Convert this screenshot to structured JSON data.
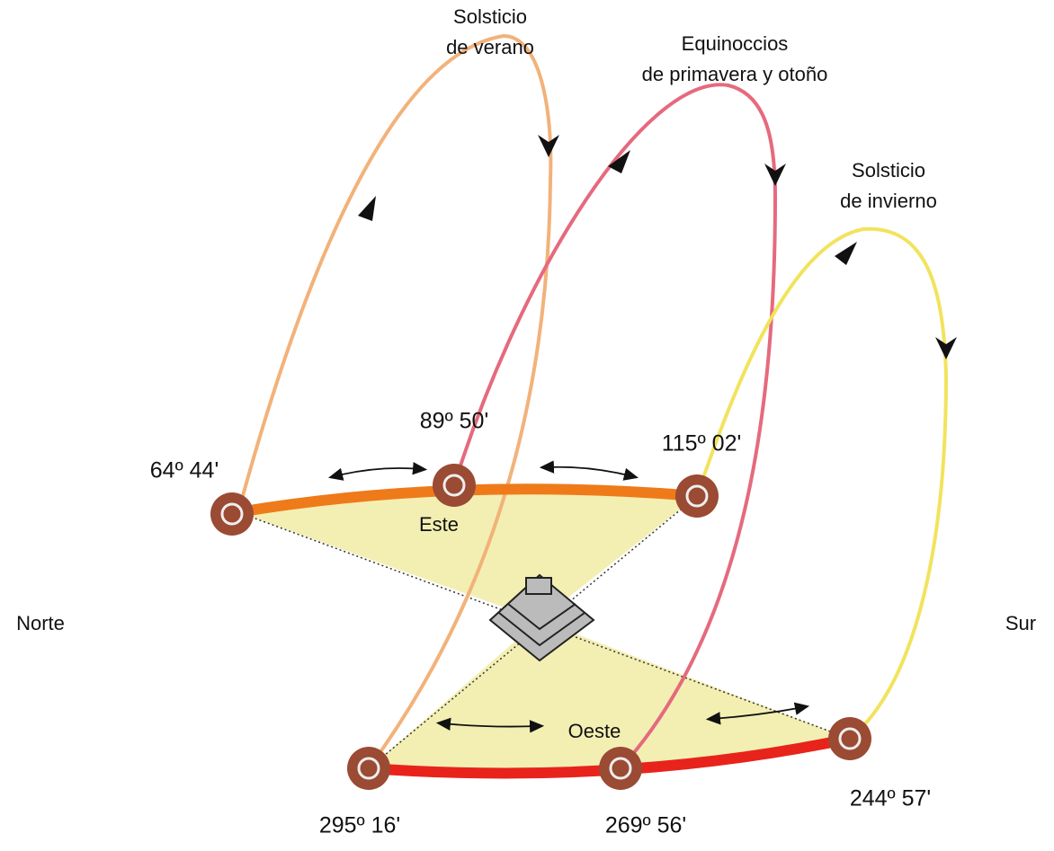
{
  "arcs": [
    {
      "lines": [
        "Solsticio",
        "de verano"
      ]
    },
    {
      "lines": [
        "Equinoccios",
        "de primavera y otoño"
      ]
    },
    {
      "lines": [
        "Solsticio",
        "de invierno"
      ]
    }
  ],
  "azimuths": [
    "64º 44'",
    "89º 50'",
    "115º 02'",
    "295º 16'",
    "269º 56'",
    "244º 57'"
  ],
  "sides": {
    "east": "Este",
    "west": "Oeste"
  },
  "directions": {
    "north": "Norte",
    "south": "Sur"
  }
}
